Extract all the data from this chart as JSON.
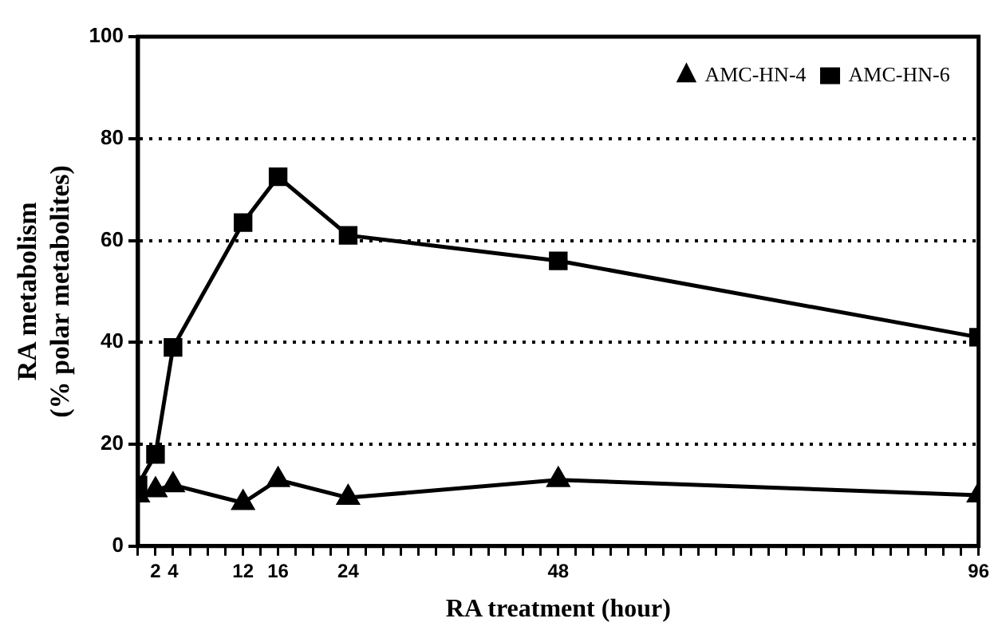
{
  "chart_data": {
    "type": "line",
    "xlabel": "RA treatment (hour)",
    "ylabel": "RA metabolism\n(% polar metabolites)",
    "x": [
      0,
      2,
      4,
      12,
      16,
      24,
      48,
      96
    ],
    "series": [
      {
        "name": "AMC-HN-4",
        "color": "#000000",
        "marker": "triangle",
        "values": [
          10,
          11,
          12,
          8.5,
          13,
          9.5,
          13,
          10
        ]
      },
      {
        "name": "AMC-HN-6",
        "color": "#000000",
        "marker": "square",
        "values": [
          12,
          18,
          39,
          63.5,
          72.5,
          61,
          56,
          41
        ]
      }
    ],
    "xlim": [
      0,
      96
    ],
    "xticks": [
      {
        "value": 0,
        "label": null
      },
      2,
      4,
      {
        "value": 6,
        "label": null
      },
      {
        "value": 8,
        "label": null
      },
      {
        "value": 10,
        "label": null
      },
      12,
      {
        "value": 14,
        "label": null
      },
      16,
      {
        "value": 18,
        "label": null
      },
      {
        "value": 20,
        "label": null
      },
      {
        "value": 22,
        "label": null
      },
      24,
      {
        "value": 26,
        "label": null
      },
      {
        "value": 28,
        "label": null
      },
      {
        "value": 30,
        "label": null
      },
      {
        "value": 32,
        "label": null
      },
      {
        "value": 34,
        "label": null
      },
      {
        "value": 36,
        "label": null
      },
      {
        "value": 38,
        "label": null
      },
      {
        "value": 40,
        "label": null
      },
      {
        "value": 42,
        "label": null
      },
      {
        "value": 44,
        "label": null
      },
      {
        "value": 46,
        "label": null
      },
      48,
      {
        "value": 50,
        "label": null
      },
      {
        "value": 52,
        "label": null
      },
      {
        "value": 54,
        "label": null
      },
      {
        "value": 56,
        "label": null
      },
      {
        "value": 58,
        "label": null
      },
      {
        "value": 60,
        "label": null
      },
      {
        "value": 62,
        "label": null
      },
      {
        "value": 64,
        "label": null
      },
      {
        "value": 66,
        "label": null
      },
      {
        "value": 68,
        "label": null
      },
      {
        "value": 70,
        "label": null
      },
      {
        "value": 72,
        "label": null
      },
      {
        "value": 74,
        "label": null
      },
      {
        "value": 76,
        "label": null
      },
      {
        "value": 78,
        "label": null
      },
      {
        "value": 80,
        "label": null
      },
      {
        "value": 82,
        "label": null
      },
      {
        "value": 84,
        "label": null
      },
      {
        "value": 86,
        "label": null
      },
      {
        "value": 88,
        "label": null
      },
      {
        "value": 90,
        "label": null
      },
      {
        "value": 92,
        "label": null
      },
      {
        "value": 94,
        "label": null
      },
      96
    ],
    "ylim": [
      0,
      100
    ],
    "yticks": [
      0,
      20,
      40,
      60,
      80,
      100
    ],
    "grid": "y",
    "legend": "top right",
    "line_style": "solid"
  }
}
